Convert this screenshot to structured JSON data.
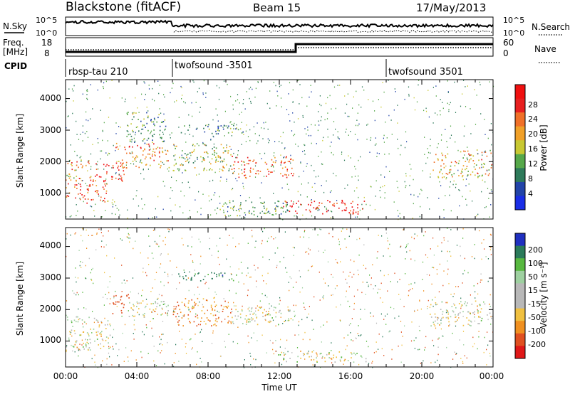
{
  "header": {
    "title": "Blackstone (fitACF)",
    "beam": "Beam 15",
    "date": "17/May/2013"
  },
  "noise_panel": {
    "left_label": "N.Sky",
    "left_ticks": [
      "10^5",
      "10^0"
    ],
    "right_ticks": [
      "10^5",
      "10^0"
    ],
    "right_label": "N.Search"
  },
  "freq_panel": {
    "left_label_1": "Freq.",
    "left_label_2": "[MHz]",
    "left_ticks": [
      "18",
      "8"
    ],
    "right_ticks": [
      "60",
      "0"
    ],
    "right_label": "Nave"
  },
  "cpid_panel": {
    "label": "CPID",
    "segments": [
      {
        "name": "rbsp-tau 210",
        "start_h": 0
      },
      {
        "name": "twofsound -3501",
        "start_h": 6
      },
      {
        "name": "twofsound 3501",
        "start_h": 18
      }
    ]
  },
  "x_axis": {
    "title": "Time UT",
    "ticks": [
      "00:00",
      "04:00",
      "08:00",
      "12:00",
      "16:00",
      "20:00",
      "00:00"
    ],
    "range_hours": [
      0,
      24
    ]
  },
  "power_panel": {
    "ylabel": "Slant Range [km]",
    "yticks": [
      "1000",
      "2000",
      "3000",
      "4000"
    ],
    "cbar_label": "Power [dB]",
    "cbar_ticks": [
      "4",
      "8",
      "12",
      "16",
      "20",
      "24",
      "28"
    ],
    "colors": [
      "#1a2ee6",
      "#2244a8",
      "#2e7a5a",
      "#56a84a",
      "#c8c832",
      "#f0a028",
      "#f07028",
      "#e82020",
      "#f01010"
    ]
  },
  "velocity_panel": {
    "ylabel": "Slant Range [km]",
    "yticks": [
      "1000",
      "2000",
      "3000",
      "4000"
    ],
    "cbar_label": "Velocity [m s⁻¹]",
    "cbar_ticks": [
      "200",
      "100",
      "50",
      "15",
      "-15",
      "-50",
      "-100",
      "-200"
    ],
    "colors": [
      "#2030c0",
      "#2a7a5a",
      "#58b840",
      "#9ed0a0",
      "#b8b8b8",
      "#b8b8b8",
      "#f0c040",
      "#f09020",
      "#e05020",
      "#e01818"
    ]
  },
  "chart_data": {
    "type": "heatmap",
    "x_unit": "hours UT",
    "y_unit": "slant range km",
    "x_range": [
      0,
      24
    ],
    "y_range": [
      180,
      4600
    ],
    "power_blobs": [
      {
        "t": [
          0.0,
          2.4
        ],
        "r": [
          700,
          1500
        ],
        "p": 24
      },
      {
        "t": [
          0.0,
          1.4
        ],
        "r": [
          1500,
          2100
        ],
        "p": 18
      },
      {
        "t": [
          1.5,
          3.3
        ],
        "r": [
          1400,
          2000
        ],
        "p": 28
      },
      {
        "t": [
          2.8,
          5.8
        ],
        "r": [
          1800,
          2600
        ],
        "p": 22
      },
      {
        "t": [
          3.4,
          5.6
        ],
        "r": [
          2600,
          3600
        ],
        "p": 10
      },
      {
        "t": [
          6.0,
          9.3
        ],
        "r": [
          1700,
          2600
        ],
        "p": 14
      },
      {
        "t": [
          6.4,
          10.0
        ],
        "r": [
          2900,
          3200
        ],
        "p": 8
      },
      {
        "t": [
          9.3,
          12.8
        ],
        "r": [
          1500,
          2200
        ],
        "p": 24
      },
      {
        "t": [
          8.5,
          12.5
        ],
        "r": [
          300,
          800
        ],
        "p": 10
      },
      {
        "t": [
          12.2,
          16.8
        ],
        "r": [
          350,
          800
        ],
        "p": 28
      },
      {
        "t": [
          20.6,
          24.0
        ],
        "r": [
          1500,
          2400
        ],
        "p": 18
      }
    ],
    "velocity_blobs": [
      {
        "t": [
          0.0,
          2.5
        ],
        "r": [
          700,
          1800
        ],
        "v": 0
      },
      {
        "t": [
          2.6,
          3.6
        ],
        "r": [
          1800,
          2500
        ],
        "v": -200
      },
      {
        "t": [
          3.4,
          5.8
        ],
        "r": [
          1700,
          2300
        ],
        "v": 0
      },
      {
        "t": [
          6.0,
          9.3
        ],
        "r": [
          1500,
          2400
        ],
        "v": -80
      },
      {
        "t": [
          6.2,
          9.6
        ],
        "r": [
          2900,
          3200
        ],
        "v": 150
      },
      {
        "t": [
          9.3,
          12.8
        ],
        "r": [
          1500,
          2100
        ],
        "v": 0
      },
      {
        "t": [
          11.8,
          17.0
        ],
        "r": [
          350,
          700
        ],
        "v": 0
      },
      {
        "t": [
          20.4,
          24.0
        ],
        "r": [
          1500,
          2300
        ],
        "v": 0
      }
    ]
  }
}
